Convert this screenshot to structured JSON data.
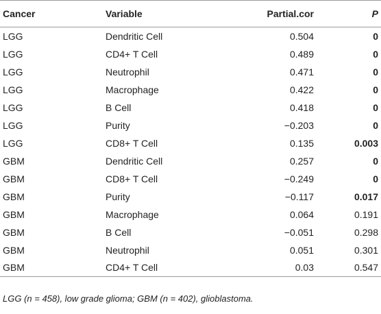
{
  "table": {
    "headers": {
      "cancer": "Cancer",
      "variable": "Variable",
      "partial_cor": "Partial.cor",
      "p": "P"
    },
    "rows": [
      {
        "cancer": "LGG",
        "variable": "Dendritic Cell",
        "partial_cor": "0.504",
        "p": "0",
        "p_bold": true
      },
      {
        "cancer": "LGG",
        "variable": "CD4+ T Cell",
        "partial_cor": "0.489",
        "p": "0",
        "p_bold": true
      },
      {
        "cancer": "LGG",
        "variable": "Neutrophil",
        "partial_cor": "0.471",
        "p": "0",
        "p_bold": true
      },
      {
        "cancer": "LGG",
        "variable": "Macrophage",
        "partial_cor": "0.422",
        "p": "0",
        "p_bold": true
      },
      {
        "cancer": "LGG",
        "variable": "B Cell",
        "partial_cor": "0.418",
        "p": "0",
        "p_bold": true
      },
      {
        "cancer": "LGG",
        "variable": "Purity",
        "partial_cor": "−0.203",
        "p": "0",
        "p_bold": true
      },
      {
        "cancer": "LGG",
        "variable": "CD8+ T Cell",
        "partial_cor": "0.135",
        "p": "0.003",
        "p_bold": true
      },
      {
        "cancer": "GBM",
        "variable": "Dendritic Cell",
        "partial_cor": "0.257",
        "p": "0",
        "p_bold": true
      },
      {
        "cancer": "GBM",
        "variable": "CD8+ T Cell",
        "partial_cor": "−0.249",
        "p": "0",
        "p_bold": true
      },
      {
        "cancer": "GBM",
        "variable": "Purity",
        "partial_cor": "−0.117",
        "p": "0.017",
        "p_bold": true
      },
      {
        "cancer": "GBM",
        "variable": "Macrophage",
        "partial_cor": "0.064",
        "p": "0.191",
        "p_bold": false
      },
      {
        "cancer": "GBM",
        "variable": "B Cell",
        "partial_cor": "−0.051",
        "p": "0.298",
        "p_bold": false
      },
      {
        "cancer": "GBM",
        "variable": "Neutrophil",
        "partial_cor": "0.051",
        "p": "0.301",
        "p_bold": false
      },
      {
        "cancer": "GBM",
        "variable": "CD4+ T Cell",
        "partial_cor": "0.03",
        "p": "0.547",
        "p_bold": false
      }
    ]
  },
  "footnote": "LGG (n = 458), low grade glioma; GBM (n = 402), glioblastoma."
}
